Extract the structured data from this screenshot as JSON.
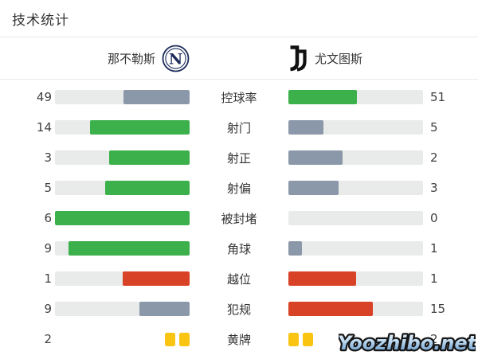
{
  "page": {
    "title": "技术统计"
  },
  "header": {
    "home_team": {
      "name": "那不勒斯",
      "badge_letter": "N",
      "badge_color": "#1c2c5b"
    },
    "away_team": {
      "name": "尤文图斯",
      "logo_color": "#111111"
    }
  },
  "colors": {
    "green": "#3cb04a",
    "gray": "#8b98aa",
    "red": "#d84227",
    "yellow": "#f9c412",
    "track": "#e9eaea",
    "divider": "#e9e9e9",
    "text": "#333333"
  },
  "stats": {
    "rows": [
      {
        "label": "控球率",
        "home": 49,
        "away": 51,
        "home_color": "gray",
        "away_color": "green"
      },
      {
        "label": "射门",
        "home": 14,
        "away": 5,
        "home_color": "green",
        "away_color": "gray"
      },
      {
        "label": "射正",
        "home": 3,
        "away": 2,
        "home_color": "green",
        "away_color": "gray"
      },
      {
        "label": "射偏",
        "home": 5,
        "away": 3,
        "home_color": "green",
        "away_color": "gray"
      },
      {
        "label": "被封堵",
        "home": 6,
        "away": 0,
        "home_color": "green",
        "away_color": "gray"
      },
      {
        "label": "角球",
        "home": 9,
        "away": 1,
        "home_color": "green",
        "away_color": "gray"
      },
      {
        "label": "越位",
        "home": 1,
        "away": 1,
        "home_color": "red",
        "away_color": "red"
      },
      {
        "label": "犯规",
        "home": 9,
        "away": 15,
        "home_color": "gray",
        "away_color": "red"
      },
      {
        "label": "黄牌",
        "home": 2,
        "away": 2,
        "type": "cards"
      }
    ]
  },
  "watermark": {
    "text": "Yoozhibo.net"
  },
  "chart_data": {
    "type": "bar",
    "title": "技术统计",
    "categories": [
      "控球率",
      "射门",
      "射正",
      "射偏",
      "被封堵",
      "角球",
      "越位",
      "犯规",
      "黄牌"
    ],
    "series": [
      {
        "name": "那不勒斯",
        "values": [
          49,
          14,
          3,
          5,
          6,
          9,
          1,
          9,
          2
        ]
      },
      {
        "name": "尤文图斯",
        "values": [
          51,
          5,
          2,
          3,
          0,
          1,
          1,
          15,
          2
        ]
      }
    ],
    "layout": "paired horizontal bars, fills grow from center outward, fill fraction = value / (home+away)",
    "legend_position": "top",
    "grid": false
  }
}
